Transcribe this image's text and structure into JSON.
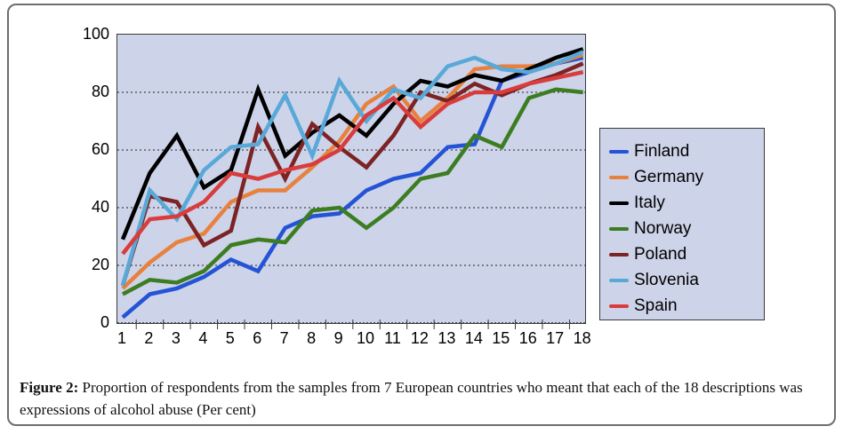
{
  "figure": {
    "caption_label": "Figure 2:",
    "caption_text": " Proportion of respondents from the samples from 7 European countries who meant that each of the 18 descriptions was expressions of alcohol abuse (Per cent)"
  },
  "chart_data": {
    "type": "line",
    "title": "",
    "xlabel": "",
    "ylabel": "",
    "x": [
      1,
      2,
      3,
      4,
      5,
      6,
      7,
      8,
      9,
      10,
      11,
      12,
      13,
      14,
      15,
      16,
      17,
      18
    ],
    "ylim": [
      0,
      100
    ],
    "y_ticks": [
      0,
      20,
      40,
      60,
      80,
      100
    ],
    "grid": "horizontal dotted at 20,40,60,80",
    "legend_position": "right",
    "plot_background": "#cdd3e8",
    "frame_color": "#3a3a3a",
    "series": [
      {
        "name": "Finland",
        "color": "#2453d6",
        "values": [
          2,
          10,
          12,
          16,
          22,
          18,
          33,
          37,
          38,
          46,
          50,
          52,
          61,
          62,
          84,
          87,
          90,
          92
        ]
      },
      {
        "name": "Germany",
        "color": "#e8813d",
        "values": [
          12,
          21,
          28,
          31,
          42,
          46,
          46,
          54,
          63,
          76,
          82,
          70,
          78,
          88,
          89,
          89,
          90,
          93
        ]
      },
      {
        "name": "Italy",
        "color": "#000000",
        "values": [
          29,
          52,
          65,
          47,
          53,
          81,
          58,
          66,
          72,
          65,
          76,
          84,
          82,
          86,
          84,
          88,
          92,
          95
        ]
      },
      {
        "name": "Norway",
        "color": "#3c7d22",
        "values": [
          10,
          15,
          14,
          18,
          27,
          29,
          28,
          39,
          40,
          33,
          40,
          50,
          52,
          65,
          61,
          78,
          81,
          80
        ]
      },
      {
        "name": "Poland",
        "color": "#7c2323",
        "values": [
          13,
          44,
          42,
          27,
          32,
          68,
          50,
          69,
          61,
          54,
          65,
          80,
          77,
          83,
          79,
          83,
          86,
          90
        ]
      },
      {
        "name": "Slovenia",
        "color": "#58a9d8",
        "values": [
          13,
          46,
          36,
          53,
          61,
          62,
          79,
          58,
          84,
          70,
          81,
          78,
          89,
          92,
          88,
          87,
          90,
          94
        ]
      },
      {
        "name": "Spain",
        "color": "#d93c3c",
        "values": [
          24,
          36,
          37,
          42,
          52,
          50,
          53,
          55,
          60,
          72,
          78,
          68,
          76,
          80,
          80,
          83,
          85,
          87
        ]
      }
    ]
  }
}
